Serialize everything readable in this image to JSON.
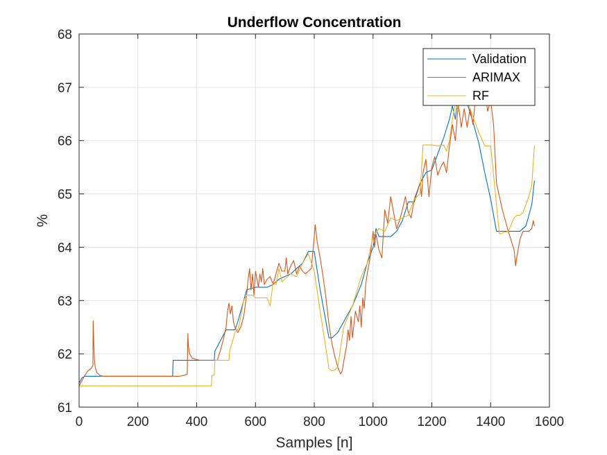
{
  "chart_data": {
    "type": "line",
    "title": "Underflow Concentration",
    "xlabel": "Samples [n]",
    "ylabel": "%",
    "xlim": [
      0,
      1600
    ],
    "ylim": [
      61,
      68
    ],
    "xticks": [
      "0",
      "200",
      "400",
      "600",
      "800",
      "1000",
      "1200",
      "1400",
      "1600"
    ],
    "yticks": [
      "61",
      "62",
      "63",
      "64",
      "65",
      "66",
      "67",
      "68"
    ],
    "grid": true,
    "legend_position": "top-right",
    "series": [
      {
        "name": "Validation",
        "color": "#0072BD",
        "x": [
          0,
          10,
          20,
          30,
          40,
          55,
          70,
          100,
          150,
          200,
          250,
          300,
          318,
          320,
          370,
          372,
          440,
          460,
          462,
          500,
          502,
          530,
          540,
          560,
          570,
          600,
          640,
          660,
          680,
          700,
          720,
          740,
          760,
          780,
          800,
          820,
          840,
          850,
          860,
          870,
          880,
          900,
          930,
          960,
          980,
          1000,
          1010,
          1020,
          1040,
          1060,
          1080,
          1100,
          1120,
          1140,
          1160,
          1180,
          1200,
          1220,
          1240,
          1260,
          1270,
          1280,
          1290,
          1300,
          1310,
          1320,
          1340,
          1360,
          1380,
          1400,
          1420,
          1430,
          1460,
          1500,
          1520,
          1540,
          1549
        ],
        "y": [
          61.45,
          61.55,
          61.58,
          61.58,
          61.58,
          61.58,
          61.58,
          61.58,
          61.58,
          61.58,
          61.58,
          61.58,
          61.58,
          61.88,
          61.88,
          61.88,
          61.88,
          61.88,
          62.05,
          62.45,
          62.45,
          62.45,
          62.6,
          63.0,
          63.2,
          63.25,
          63.25,
          63.3,
          63.4,
          63.45,
          63.5,
          63.6,
          63.7,
          63.92,
          63.92,
          63.2,
          62.6,
          62.3,
          62.3,
          62.35,
          62.4,
          62.6,
          62.9,
          63.3,
          63.7,
          64.0,
          64.35,
          64.2,
          64.2,
          64.2,
          64.3,
          64.5,
          64.85,
          64.85,
          65.2,
          65.4,
          65.45,
          65.75,
          66.05,
          66.4,
          66.65,
          66.4,
          66.9,
          66.9,
          66.8,
          66.7,
          66.35,
          65.95,
          65.4,
          64.9,
          64.3,
          64.3,
          64.3,
          64.3,
          64.4,
          64.8,
          65.25
        ]
      },
      {
        "name": "ARIMAX",
        "color": "#D95319",
        "x": [
          0,
          10,
          20,
          30,
          40,
          47,
          48,
          50,
          52,
          55,
          60,
          70,
          80,
          100,
          150,
          200,
          250,
          300,
          340,
          360,
          368,
          370,
          372,
          376,
          385,
          395,
          410,
          440,
          470,
          480,
          490,
          500,
          505,
          510,
          515,
          520,
          525,
          530,
          540,
          550,
          560,
          570,
          575,
          580,
          585,
          590,
          595,
          600,
          605,
          610,
          615,
          620,
          625,
          630,
          640,
          650,
          660,
          670,
          680,
          690,
          700,
          705,
          710,
          720,
          730,
          740,
          750,
          760,
          770,
          780,
          790,
          800,
          803,
          806,
          810,
          820,
          830,
          840,
          850,
          860,
          870,
          880,
          890,
          895,
          900,
          910,
          915,
          920,
          925,
          930,
          940,
          950,
          955,
          960,
          965,
          970,
          975,
          980,
          990,
          1000,
          1005,
          1010,
          1020,
          1030,
          1040,
          1050,
          1060,
          1070,
          1080,
          1090,
          1100,
          1110,
          1120,
          1130,
          1140,
          1150,
          1160,
          1165,
          1170,
          1180,
          1190,
          1200,
          1210,
          1220,
          1230,
          1240,
          1250,
          1260,
          1270,
          1280,
          1290,
          1300,
          1310,
          1320,
          1330,
          1340,
          1350,
          1360,
          1370,
          1380,
          1390,
          1400,
          1410,
          1420,
          1440,
          1460,
          1480,
          1485,
          1490,
          1500,
          1510,
          1520,
          1530,
          1540,
          1545,
          1549
        ],
        "y": [
          61.4,
          61.5,
          61.6,
          61.68,
          61.72,
          61.78,
          62.62,
          62.2,
          61.9,
          61.75,
          61.65,
          61.6,
          61.58,
          61.58,
          61.58,
          61.58,
          61.58,
          61.58,
          61.58,
          61.6,
          61.62,
          62.38,
          62.15,
          62.0,
          61.92,
          61.9,
          61.88,
          61.88,
          61.88,
          62.05,
          62.25,
          62.5,
          62.8,
          62.95,
          62.75,
          62.9,
          62.6,
          62.5,
          62.4,
          62.5,
          62.7,
          63.1,
          63.4,
          63.6,
          63.2,
          63.5,
          63.1,
          63.55,
          63.4,
          63.25,
          63.5,
          63.35,
          63.6,
          63.3,
          63.4,
          63.45,
          63.3,
          63.5,
          63.7,
          63.55,
          63.55,
          63.8,
          63.5,
          63.65,
          63.75,
          63.5,
          63.65,
          63.55,
          63.5,
          63.55,
          63.6,
          64.2,
          64.42,
          64.3,
          64.1,
          63.8,
          63.45,
          63.05,
          62.55,
          62.2,
          61.95,
          61.75,
          61.62,
          61.68,
          61.85,
          62.15,
          62.45,
          62.25,
          62.7,
          62.3,
          62.8,
          62.6,
          62.9,
          62.5,
          63.05,
          62.85,
          63.3,
          63.5,
          63.8,
          64.3,
          64.0,
          64.25,
          63.95,
          63.8,
          64.7,
          64.45,
          64.95,
          64.65,
          64.35,
          64.5,
          64.7,
          64.95,
          64.65,
          64.55,
          64.9,
          65.05,
          65.2,
          64.95,
          65.4,
          65.65,
          64.95,
          65.5,
          65.7,
          65.35,
          65.5,
          65.6,
          65.4,
          65.9,
          66.3,
          66.0,
          66.7,
          66.25,
          66.6,
          66.25,
          66.6,
          66.3,
          66.9,
          67.05,
          66.7,
          66.95,
          66.55,
          66.75,
          66.3,
          65.2,
          64.7,
          64.3,
          63.95,
          63.65,
          63.85,
          64.15,
          64.3,
          64.3,
          64.3,
          64.35,
          64.5,
          64.4
        ]
      },
      {
        "name": "RF",
        "color": "#EDB120",
        "x": [
          0,
          10,
          50,
          100,
          150,
          200,
          250,
          300,
          350,
          400,
          450,
          452,
          460,
          462,
          500,
          510,
          512,
          520,
          530,
          540,
          545,
          560,
          570,
          580,
          590,
          600,
          640,
          650,
          660,
          670,
          680,
          690,
          700,
          720,
          740,
          760,
          780,
          800,
          820,
          840,
          850,
          860,
          870,
          880,
          900,
          930,
          960,
          980,
          1000,
          1020,
          1040,
          1060,
          1080,
          1100,
          1120,
          1140,
          1160,
          1170,
          1180,
          1190,
          1200,
          1220,
          1240,
          1250,
          1260,
          1270,
          1280,
          1290,
          1300,
          1310,
          1320,
          1340,
          1360,
          1380,
          1400,
          1420,
          1430,
          1460,
          1480,
          1490,
          1500,
          1510,
          1530,
          1540,
          1545,
          1549
        ],
        "y": [
          61.4,
          61.4,
          61.4,
          61.4,
          61.4,
          61.4,
          61.4,
          61.4,
          61.4,
          61.4,
          61.4,
          61.6,
          61.6,
          61.88,
          61.88,
          61.88,
          62.05,
          62.2,
          62.4,
          62.45,
          62.55,
          63.0,
          63.1,
          63.1,
          63.1,
          63.05,
          63.05,
          62.9,
          63.35,
          63.3,
          63.6,
          63.35,
          63.4,
          63.5,
          63.45,
          63.7,
          63.88,
          63.55,
          62.8,
          62.1,
          61.72,
          61.68,
          61.7,
          61.75,
          62.5,
          62.9,
          63.45,
          63.7,
          64.2,
          64.35,
          64.3,
          64.55,
          64.5,
          64.55,
          64.6,
          64.9,
          65.0,
          65.92,
          65.92,
          65.92,
          65.92,
          65.9,
          65.92,
          65.8,
          66.0,
          66.4,
          66.7,
          66.55,
          67.15,
          66.8,
          66.75,
          66.45,
          66.15,
          65.9,
          65.9,
          64.8,
          64.25,
          64.3,
          64.55,
          64.6,
          64.6,
          64.65,
          64.95,
          65.15,
          65.6,
          65.9
        ]
      }
    ]
  }
}
